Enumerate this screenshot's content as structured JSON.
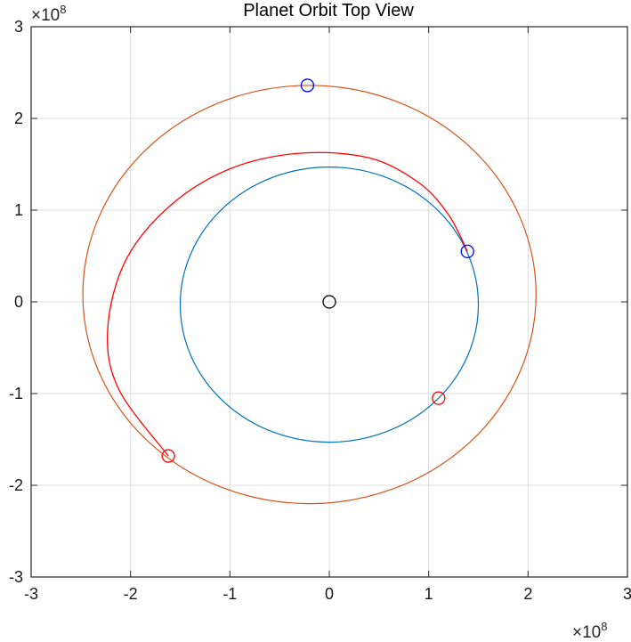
{
  "chart_data": {
    "type": "line",
    "title": "Planet Orbit Top View",
    "xlabel": "",
    "ylabel": "",
    "x_exponent": "8",
    "y_exponent": "8",
    "exponent_base": "×10",
    "xlim": [
      -3,
      3
    ],
    "ylim": [
      -3,
      3
    ],
    "xticks": [
      -3,
      -2,
      -1,
      0,
      1,
      2,
      3
    ],
    "yticks": [
      -3,
      -2,
      -1,
      0,
      1,
      2,
      3
    ],
    "xtick_labels": [
      "-3",
      "-2",
      "-1",
      "0",
      "1",
      "2",
      "3"
    ],
    "ytick_labels": [
      "-3",
      "-2",
      "-1",
      "0",
      "1",
      "2",
      "3"
    ],
    "grid": true,
    "box": true,
    "series": [
      {
        "kind": "ellipse",
        "color": "#0072BD",
        "center": [
          0.0,
          -0.03
        ],
        "radii": [
          1.5,
          1.5
        ]
      },
      {
        "kind": "ellipse",
        "color": "#D95319",
        "center": [
          -0.2,
          0.08
        ],
        "radii": [
          2.28,
          2.28
        ]
      },
      {
        "kind": "arc",
        "color": "#FF0000",
        "points": [
          [
            1.39,
            0.55
          ],
          [
            1.2,
            0.95
          ],
          [
            0.9,
            1.3
          ],
          [
            0.4,
            1.57
          ],
          [
            -0.3,
            1.62
          ],
          [
            -1.0,
            1.45
          ],
          [
            -1.6,
            1.05
          ],
          [
            -2.05,
            0.45
          ],
          [
            -2.23,
            -0.3
          ],
          [
            -2.12,
            -0.95
          ],
          [
            -1.62,
            -1.68
          ]
        ]
      }
    ],
    "markers": [
      {
        "name": "sun",
        "color": "#000000",
        "x": 0.0,
        "y": 0.0
      },
      {
        "name": "departure",
        "color": "#0000FF",
        "x": 1.39,
        "y": 0.55
      },
      {
        "name": "target-at-departure",
        "color": "#0000FF",
        "x": -0.22,
        "y": 2.36
      },
      {
        "name": "origin-at-arrival",
        "color": "#FF0000",
        "x": 1.1,
        "y": -1.05
      },
      {
        "name": "arrival",
        "color": "#FF0000",
        "x": -1.62,
        "y": -1.68
      }
    ],
    "colors": {
      "axis": "#262626",
      "grid": "#dcdcdc"
    }
  }
}
